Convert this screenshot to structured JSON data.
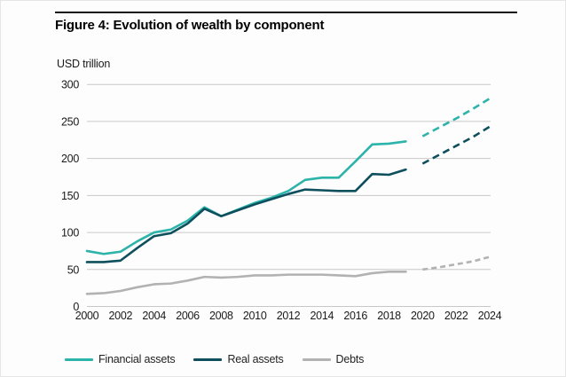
{
  "figure": {
    "title": "Figure 4: Evolution of wealth by component",
    "unit_label": "USD trillion"
  },
  "chart_data": {
    "type": "line",
    "title": "Figure 4: Evolution of wealth by component",
    "ylabel": "USD trillion",
    "xlabel": "",
    "ylim": [
      0,
      300
    ],
    "y_ticks": [
      0,
      50,
      100,
      150,
      200,
      250,
      300
    ],
    "x_ticks": [
      2000,
      2002,
      2004,
      2006,
      2008,
      2010,
      2012,
      2014,
      2016,
      2018,
      2020,
      2022,
      2024
    ],
    "x_range": [
      2000,
      2024
    ],
    "grid": "horizontal",
    "gridline_color": "#c8c8c8",
    "legend_position": "bottom",
    "history_years": [
      2000,
      2001,
      2002,
      2003,
      2004,
      2005,
      2006,
      2007,
      2008,
      2009,
      2010,
      2011,
      2012,
      2013,
      2014,
      2015,
      2016,
      2017,
      2018,
      2019
    ],
    "forecast_years": [
      2020,
      2021,
      2022,
      2023,
      2024
    ],
    "series": [
      {
        "name": "Financial assets",
        "color": "#2cb3aa",
        "values": [
          75,
          71,
          74,
          88,
          100,
          104,
          116,
          134,
          122,
          131,
          140,
          147,
          156,
          171,
          174,
          174,
          196,
          219,
          220,
          223
        ],
        "forecast_values": [
          230,
          242,
          254,
          267,
          281
        ],
        "dash": "8 5"
      },
      {
        "name": "Real assets",
        "color": "#0e4f5e",
        "values": [
          60,
          60,
          62,
          79,
          95,
          99,
          112,
          132,
          122,
          130,
          138,
          145,
          152,
          158,
          157,
          156,
          156,
          179,
          178,
          185
        ],
        "forecast_values": [
          193,
          205,
          217,
          229,
          243
        ],
        "dash": "8 5"
      },
      {
        "name": "Debts",
        "color": "#b2b2b2",
        "values": [
          17,
          18,
          21,
          26,
          30,
          31,
          35,
          40,
          39,
          40,
          42,
          42,
          43,
          43,
          43,
          42,
          41,
          45,
          47,
          47
        ],
        "forecast_values": [
          50,
          53,
          57,
          61,
          67
        ],
        "dash": "6 4"
      }
    ]
  },
  "legend": {
    "items": [
      {
        "label": "Financial assets",
        "color": "#2cb3aa"
      },
      {
        "label": "Real assets",
        "color": "#0e4f5e"
      },
      {
        "label": "Debts",
        "color": "#b2b2b2"
      }
    ]
  }
}
